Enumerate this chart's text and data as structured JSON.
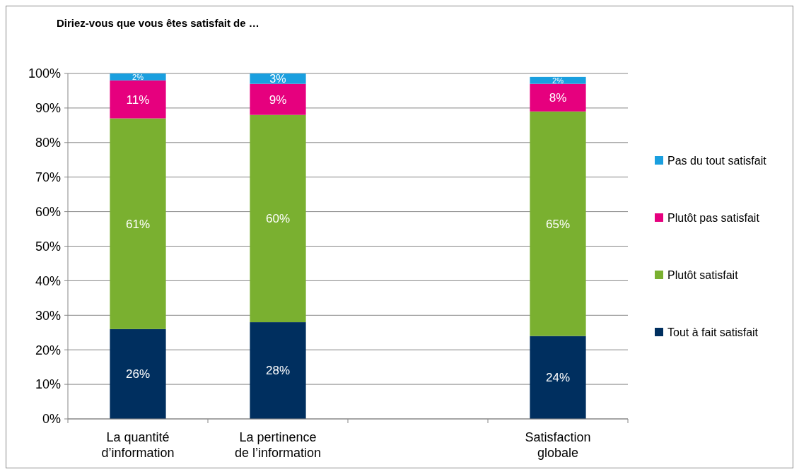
{
  "chart_data": {
    "type": "bar",
    "title": "Diriez-vous que vous êtes satisfait de …",
    "stacked": true,
    "categories": [
      "La quantité d’information",
      "La pertinence de l’information",
      null,
      "Satisfaction globale"
    ],
    "series": [
      {
        "name": "Tout à fait satisfait",
        "color": "#002f5f",
        "values": [
          26,
          28,
          null,
          24
        ],
        "value_labels": [
          "26%",
          "28%",
          null,
          "24%"
        ]
      },
      {
        "name": "Plutôt satisfait",
        "color": "#7ab030",
        "values": [
          61,
          60,
          null,
          65
        ],
        "value_labels": [
          "61%",
          "60%",
          null,
          "65%"
        ]
      },
      {
        "name": "Plutôt pas satisfait",
        "color": "#e6007e",
        "values": [
          11,
          9,
          null,
          8
        ],
        "value_labels": [
          "11%",
          "9%",
          null,
          "8%"
        ]
      },
      {
        "name": "Pas du tout satisfait",
        "color": "#1a9fdf",
        "values": [
          2,
          3,
          null,
          2
        ],
        "value_labels": [
          "2%",
          "3%",
          null,
          "2%"
        ]
      }
    ],
    "ylim": [
      0,
      100
    ],
    "yticks": [
      {
        "value": 0,
        "label": "0%"
      },
      {
        "value": 10,
        "label": "10%"
      },
      {
        "value": 20,
        "label": "20%"
      },
      {
        "value": 30,
        "label": "30%"
      },
      {
        "value": 40,
        "label": "40%"
      },
      {
        "value": 50,
        "label": "50%"
      },
      {
        "value": 60,
        "label": "60%"
      },
      {
        "value": 70,
        "label": "70%"
      },
      {
        "value": 80,
        "label": "80%"
      },
      {
        "value": 90,
        "label": "90%"
      },
      {
        "value": 100,
        "label": "100%"
      }
    ],
    "grid": "y",
    "legend": "right"
  }
}
